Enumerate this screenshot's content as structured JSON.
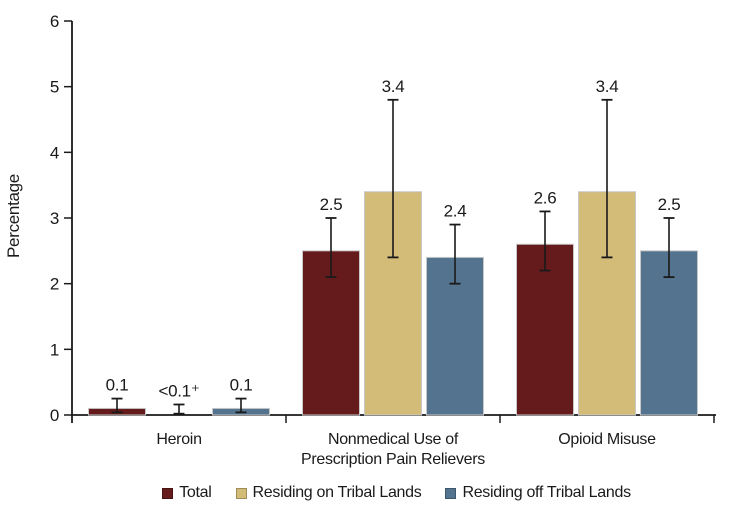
{
  "chart_data": {
    "type": "bar",
    "title": "",
    "ylabel": "Percentage",
    "xlabel": "",
    "ylim": [
      0,
      6
    ],
    "yticks": [
      0,
      1,
      2,
      3,
      4,
      5,
      6
    ],
    "grid": false,
    "error_bars": true,
    "legend_position": "bottom",
    "categories": [
      "Heroin",
      "Nonmedical Use of Prescription Pain Relievers",
      "Opioid Misuse"
    ],
    "category_label_lines": [
      [
        "Heroin"
      ],
      [
        "Nonmedical Use of",
        "Prescription Pain Relievers"
      ],
      [
        "Opioid Misuse"
      ]
    ],
    "series": [
      {
        "name": "Total",
        "color": "#651b1b",
        "values": [
          0.1,
          2.5,
          2.6
        ],
        "value_labels": [
          "0.1",
          "2.5",
          "2.6"
        ],
        "error_low": [
          0.04,
          2.1,
          2.2
        ],
        "error_high": [
          0.25,
          3.0,
          3.1
        ]
      },
      {
        "name": "Residing on Tribal Lands",
        "color": "#d3bc78",
        "values": [
          0,
          3.4,
          3.4
        ],
        "value_labels": [
          "<0.1⁺",
          "3.4",
          "3.4"
        ],
        "error_low": [
          0.02,
          2.4,
          2.4
        ],
        "error_high": [
          0.16,
          4.8,
          4.8
        ]
      },
      {
        "name": "Residing off Tribal Lands",
        "color": "#53738f",
        "values": [
          0.1,
          2.4,
          2.5
        ],
        "value_labels": [
          "0.1",
          "2.4",
          "2.5"
        ],
        "error_low": [
          0.04,
          2.0,
          2.1
        ],
        "error_high": [
          0.25,
          2.9,
          3.0
        ]
      }
    ],
    "axis_color": "#1a1a1a"
  }
}
